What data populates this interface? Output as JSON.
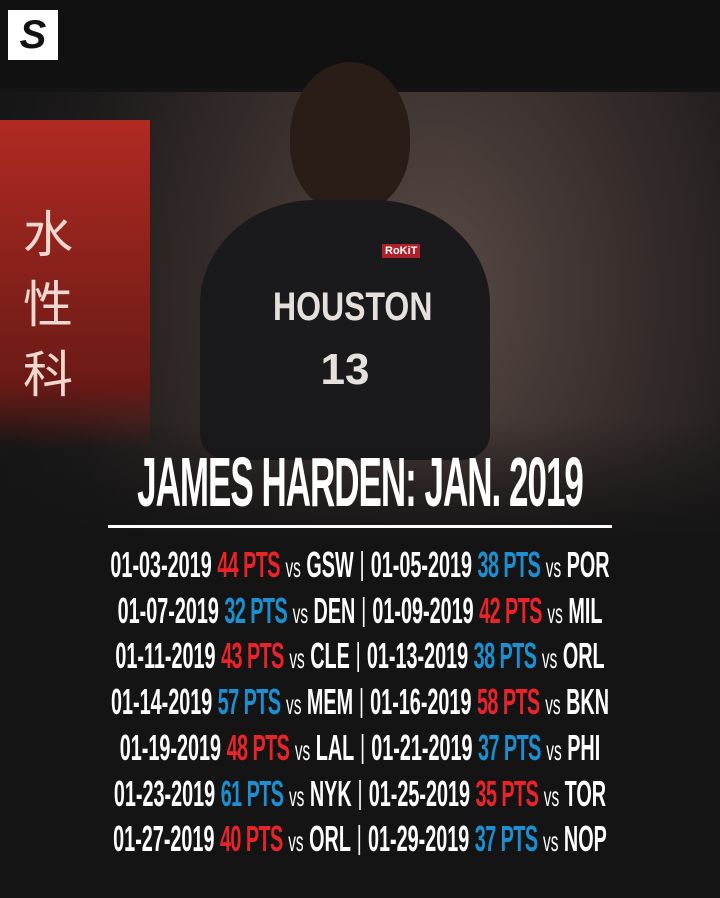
{
  "header": {
    "logo": "S"
  },
  "photo": {
    "jersey_city": "HOUSTON",
    "jersey_number": "13",
    "sponsor": "RoKiT",
    "sign_chars": [
      "水",
      "性",
      "科"
    ]
  },
  "title": "JAMES HARDEN: JAN. 2019",
  "vs_label": "vs",
  "games": [
    {
      "date": "01-03-2019",
      "points": "44 PTS",
      "opponent": "GSW",
      "color": "#e8232a"
    },
    {
      "date": "01-05-2019",
      "points": "38 PTS",
      "opponent": "POR",
      "color": "#1d8fd0"
    },
    {
      "date": "01-07-2019",
      "points": "32 PTS",
      "opponent": "DEN",
      "color": "#1d8fd0"
    },
    {
      "date": "01-09-2019",
      "points": "42 PTS",
      "opponent": "MIL",
      "color": "#e8232a"
    },
    {
      "date": "01-11-2019",
      "points": "43 PTS",
      "opponent": "CLE",
      "color": "#e8232a"
    },
    {
      "date": "01-13-2019",
      "points": "38 PTS",
      "opponent": "ORL",
      "color": "#1d8fd0"
    },
    {
      "date": "01-14-2019",
      "points": "57 PTS",
      "opponent": "MEM",
      "color": "#1d8fd0"
    },
    {
      "date": "01-16-2019",
      "points": "58 PTS",
      "opponent": "BKN",
      "color": "#e8232a"
    },
    {
      "date": "01-19-2019",
      "points": "48 PTS",
      "opponent": "LAL",
      "color": "#e8232a"
    },
    {
      "date": "01-21-2019",
      "points": "37 PTS",
      "opponent": "PHI",
      "color": "#1d8fd0"
    },
    {
      "date": "01-23-2019",
      "points": "61 PTS",
      "opponent": "NYK",
      "color": "#1d8fd0"
    },
    {
      "date": "01-25-2019",
      "points": "35 PTS",
      "opponent": "TOR",
      "color": "#e8232a"
    },
    {
      "date": "01-27-2019",
      "points": "40 PTS",
      "opponent": "ORL",
      "color": "#e8232a"
    },
    {
      "date": "01-29-2019",
      "points": "37 PTS",
      "opponent": "NOP",
      "color": "#1d8fd0"
    }
  ]
}
